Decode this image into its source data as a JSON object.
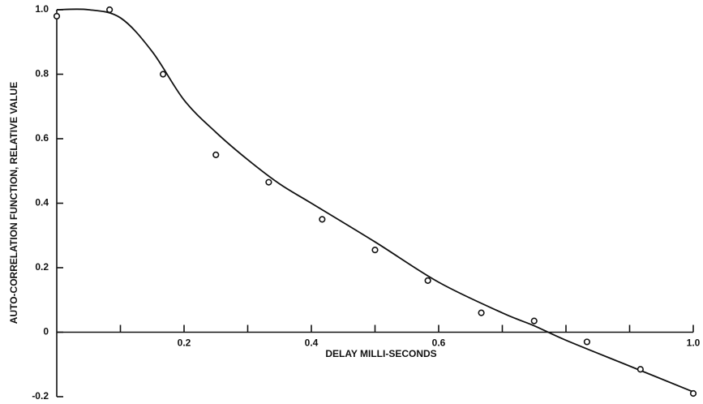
{
  "chart_data": {
    "type": "scatter",
    "x_label": "DELAY MILLI-SECONDS",
    "y_label": "AUTO-CORRELATION FUNCTION, RELATIVE VALUE",
    "xlim": [
      0,
      1.0
    ],
    "ylim": [
      -0.2,
      1.0
    ],
    "xticks": [
      {
        "value": 0.2,
        "label": "0.2"
      },
      {
        "value": 0.4,
        "label": "0.4"
      },
      {
        "value": 0.6,
        "label": "0.6"
      },
      {
        "value": 1.0,
        "label": "1.0"
      }
    ],
    "xminor_ticks": [
      0.1,
      0.3,
      0.5,
      0.7,
      0.8,
      0.9
    ],
    "yticks": [
      {
        "value": 1.0,
        "label": "1.0"
      },
      {
        "value": 0.8,
        "label": "0.8"
      },
      {
        "value": 0.6,
        "label": "0.6"
      },
      {
        "value": 0.4,
        "label": "0.4"
      },
      {
        "value": 0.2,
        "label": "0.2"
      },
      {
        "value": 0,
        "label": "0"
      },
      {
        "value": -0.2,
        "label": "-0.2"
      }
    ],
    "series": [
      {
        "type": "scatter",
        "color": "#111111",
        "x": [
          0,
          0.083,
          0.167,
          0.25,
          0.333,
          0.417,
          0.5,
          0.583,
          0.667,
          0.75,
          0.833,
          0.917,
          1.0
        ],
        "values": [
          0.98,
          1.0,
          0.8,
          0.55,
          0.465,
          0.35,
          0.255,
          0.16,
          0.06,
          0.035,
          -0.03,
          -0.115,
          -0.19
        ]
      },
      {
        "type": "line",
        "color": "#111111",
        "x": [
          0,
          0.05,
          0.1,
          0.15,
          0.2,
          0.25,
          0.3,
          0.35,
          0.4,
          0.5,
          0.6,
          0.7,
          0.75,
          0.8,
          0.9,
          1.0
        ],
        "values": [
          1.0,
          1.0,
          0.975,
          0.87,
          0.72,
          0.62,
          0.535,
          0.46,
          0.4,
          0.28,
          0.155,
          0.06,
          0.02,
          -0.025,
          -0.105,
          -0.185
        ]
      }
    ]
  }
}
